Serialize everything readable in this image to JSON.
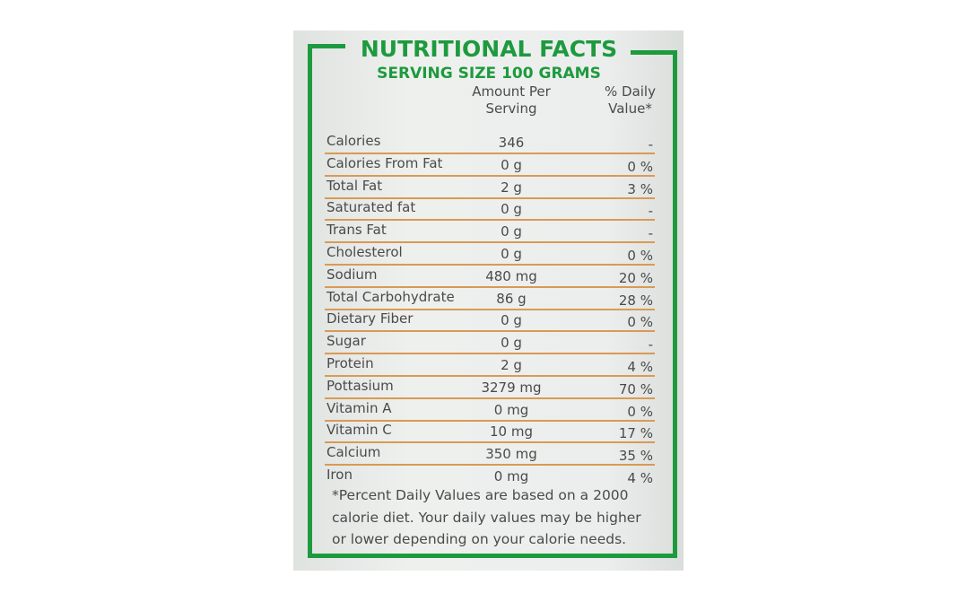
{
  "header": {
    "title": "NUTRITIONAL FACTS",
    "subtitle": "SERVING SIZE 100 GRAMS"
  },
  "columns": {
    "amount": "Amount Per Serving",
    "daily_value": "% Daily Value*"
  },
  "table": {
    "rows": [
      [
        "Calories",
        "346",
        "-"
      ],
      [
        "Calories From Fat",
        "0 g",
        "0 %"
      ],
      [
        "Total Fat",
        "2 g",
        "3 %"
      ],
      [
        "Saturated fat",
        "0 g",
        "-"
      ],
      [
        "Trans Fat",
        "0 g",
        "-"
      ],
      [
        "Cholesterol",
        "0 g",
        "0 %"
      ],
      [
        "Sodium",
        "480 mg",
        "20 %"
      ],
      [
        "Total Carbohydrate",
        "86 g",
        "28 %"
      ],
      [
        "Dietary Fiber",
        "0 g",
        "0 %"
      ],
      [
        "Sugar",
        "0 g",
        "-"
      ],
      [
        "Protein",
        "2 g",
        "4 %"
      ],
      [
        "Pottasium",
        "3279 mg",
        "70 %"
      ],
      [
        "Vitamin A",
        "0 mg",
        "0 %"
      ],
      [
        "Vitamin C",
        "10 mg",
        "17 %"
      ],
      [
        "Calcium",
        "350 mg",
        "35 %"
      ],
      [
        "Iron",
        "0 mg",
        "4 %"
      ]
    ]
  },
  "footnote": {
    "lines": [
      "*Percent Daily Values are based on a 2000",
      "calorie diet. Your daily values may be higher",
      "or lower depending on your calorie needs."
    ]
  }
}
